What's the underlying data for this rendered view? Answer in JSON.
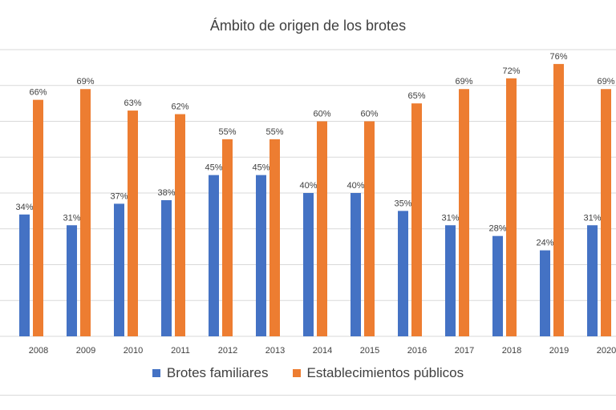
{
  "chart_data": {
    "type": "bar",
    "title": "Ámbito de origen de los brotes",
    "categories": [
      "2008",
      "2009",
      "2010",
      "2011",
      "2012",
      "2013",
      "2014",
      "2015",
      "2016",
      "2017",
      "2018",
      "2019",
      "2020"
    ],
    "series": [
      {
        "name": "Brotes familiares",
        "color": "#4472C4",
        "values": [
          34,
          31,
          37,
          38,
          45,
          45,
          40,
          40,
          35,
          31,
          28,
          24,
          31
        ],
        "labels": [
          "34%",
          "31%",
          "37%",
          "38%",
          "45%",
          "45%",
          "40%",
          "40%",
          "35%",
          "31%",
          "28%",
          "24%",
          "31%"
        ]
      },
      {
        "name": "Establecimientos públicos",
        "color": "#ED7D31",
        "values": [
          66,
          69,
          63,
          62,
          55,
          55,
          60,
          60,
          65,
          69,
          72,
          76,
          69
        ],
        "labels": [
          "66%",
          "69%",
          "63%",
          "62%",
          "55%",
          "55%",
          "60%",
          "60%",
          "65%",
          "69%",
          "72%",
          "76%",
          "69%"
        ]
      }
    ],
    "ylim": [
      0,
      80
    ],
    "grid": true,
    "legend_position": "bottom"
  }
}
